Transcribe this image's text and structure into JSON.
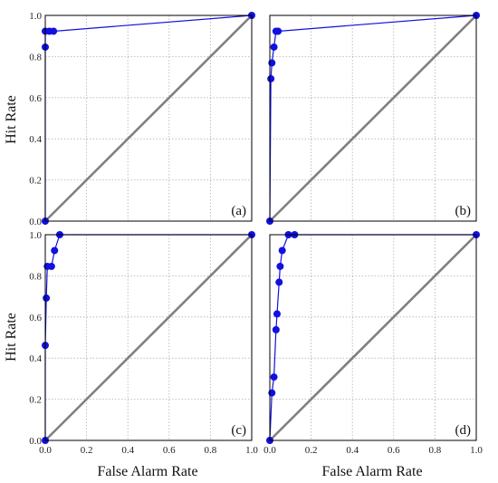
{
  "figure": {
    "y_label": "Hit Rate",
    "x_label": "False Alarm Rate",
    "x_ticks": [
      "0.0",
      "0.2",
      "0.4",
      "0.6",
      "0.8",
      "1.0"
    ],
    "y_ticks": [
      "0.0",
      "0.2",
      "0.4",
      "0.6",
      "0.8",
      "1.0"
    ]
  },
  "colors": {
    "series": "#1010e0",
    "diagonal": "#808080",
    "grid": "#b0b0b0",
    "frame": "#000000"
  },
  "chart_data": [
    {
      "type": "line",
      "panel": "(a)",
      "xlabel": "",
      "ylabel": "Hit Rate",
      "xlim": [
        0,
        1
      ],
      "ylim": [
        0,
        1
      ],
      "grid": true,
      "x": [
        0.0,
        0.0,
        0.0,
        0.02,
        0.04,
        1.0
      ],
      "y": [
        0.0,
        0.846,
        0.923,
        0.923,
        0.923,
        1.0
      ],
      "diagonal": true
    },
    {
      "type": "line",
      "panel": "(b)",
      "xlabel": "",
      "ylabel": "",
      "xlim": [
        0,
        1
      ],
      "ylim": [
        0,
        1
      ],
      "grid": true,
      "x": [
        0.0,
        0.005,
        0.01,
        0.02,
        0.03,
        0.04,
        1.0
      ],
      "y": [
        0.0,
        0.692,
        0.769,
        0.846,
        0.923,
        0.923,
        1.0
      ],
      "diagonal": true
    },
    {
      "type": "line",
      "panel": "(c)",
      "xlabel": "False Alarm Rate",
      "ylabel": "Hit Rate",
      "xlim": [
        0,
        1
      ],
      "ylim": [
        0,
        1
      ],
      "grid": true,
      "x": [
        0.0,
        0.0,
        0.005,
        0.01,
        0.03,
        0.045,
        0.07,
        1.0
      ],
      "y": [
        0.0,
        0.462,
        0.692,
        0.846,
        0.846,
        0.923,
        1.0,
        1.0
      ],
      "diagonal": true
    },
    {
      "type": "line",
      "panel": "(d)",
      "xlabel": "False Alarm Rate",
      "ylabel": "",
      "xlim": [
        0,
        1
      ],
      "ylim": [
        0,
        1
      ],
      "grid": true,
      "x": [
        0.0,
        0.01,
        0.02,
        0.03,
        0.035,
        0.045,
        0.05,
        0.06,
        0.09,
        0.12,
        1.0
      ],
      "y": [
        0.0,
        0.231,
        0.308,
        0.538,
        0.615,
        0.769,
        0.846,
        0.923,
        1.0,
        1.0,
        1.0
      ],
      "diagonal": true
    }
  ]
}
